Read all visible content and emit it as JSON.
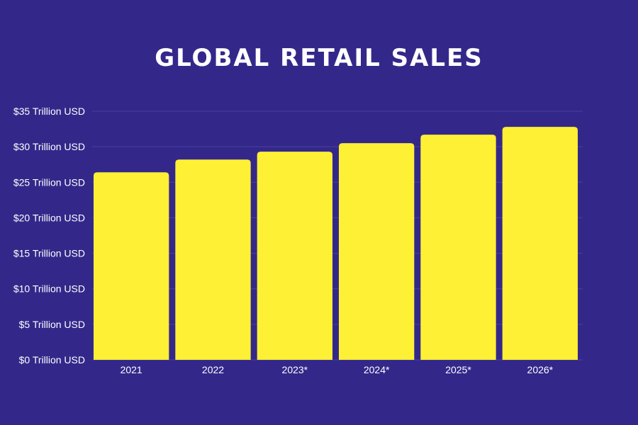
{
  "colors": {
    "background": "#33288a",
    "bar": "#fef035",
    "text": "#ffffff",
    "grid": "#4a40a0"
  },
  "chart_data": {
    "type": "bar",
    "title": "GLOBAL RETAIL SALES",
    "xlabel": "",
    "ylabel": "",
    "categories": [
      "2021",
      "2022",
      "2023*",
      "2024*",
      "2025*",
      "2026*"
    ],
    "values": [
      26.4,
      28.2,
      29.3,
      30.5,
      31.7,
      32.8
    ],
    "ylim": [
      0,
      35
    ],
    "yticks": [
      0,
      5,
      10,
      15,
      20,
      25,
      30,
      35
    ],
    "ytick_labels": [
      "$0 Trillion USD",
      "$5 Trillion USD",
      "$10 Trillion USD",
      "$15 Trillion USD",
      "$20 Trillion USD",
      "$25 Trillion USD",
      "$30 Trillion USD",
      "$35 Trillion USD"
    ],
    "grid": true,
    "legend": "none"
  }
}
